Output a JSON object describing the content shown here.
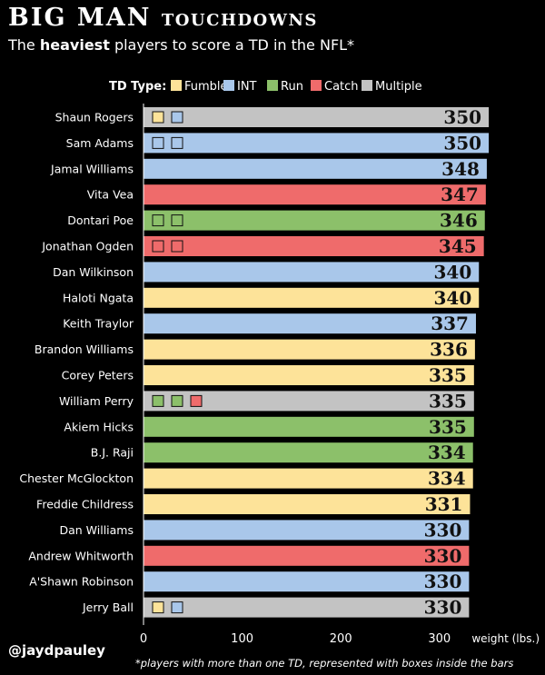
{
  "header": {
    "title_big": "BIG MAN",
    "title_small": "TOUCHDOWNS",
    "subtitle_pre": "The",
    "subtitle_bold": "heaviest",
    "subtitle_post": "players to score a TD in the NFL*"
  },
  "footer": {
    "handle": "@jaydpauley",
    "footnote": "*players with more than one TD, represented with boxes inside the bars"
  },
  "chart_data": {
    "type": "bar",
    "orientation": "horizontal",
    "title": "BIG MAN TOUCHDOWNS",
    "subtitle": "The heaviest players to score a TD in the NFL*",
    "xlabel": "weight (lbs.)",
    "xlim": [
      0,
      350
    ],
    "xticks": [
      0,
      100,
      200,
      300
    ],
    "legend": {
      "title": "TD Type:",
      "position": "top",
      "items": [
        {
          "name": "Fumble",
          "color": "#fde399"
        },
        {
          "name": "INT",
          "color": "#a9c7ea"
        },
        {
          "name": "Run",
          "color": "#8cc06a"
        },
        {
          "name": "Catch",
          "color": "#ef6b6b"
        },
        {
          "name": "Multiple",
          "color": "#c3c3c3"
        }
      ]
    },
    "bars": [
      {
        "player": "Shaun Rogers",
        "weight": 350,
        "td_type": "Multiple",
        "boxes": [
          "Fumble",
          "INT"
        ]
      },
      {
        "player": "Sam Adams",
        "weight": 350,
        "td_type": "INT",
        "boxes": [
          "INT",
          "INT"
        ]
      },
      {
        "player": "Jamal Williams",
        "weight": 348,
        "td_type": "INT",
        "boxes": []
      },
      {
        "player": "Vita Vea",
        "weight": 347,
        "td_type": "Catch",
        "boxes": []
      },
      {
        "player": "Dontari Poe",
        "weight": 346,
        "td_type": "Run",
        "boxes": [
          "Run",
          "Run"
        ]
      },
      {
        "player": "Jonathan Ogden",
        "weight": 345,
        "td_type": "Catch",
        "boxes": [
          "Catch",
          "Catch"
        ]
      },
      {
        "player": "Dan Wilkinson",
        "weight": 340,
        "td_type": "INT",
        "boxes": []
      },
      {
        "player": "Haloti Ngata",
        "weight": 340,
        "td_type": "Fumble",
        "boxes": []
      },
      {
        "player": "Keith Traylor",
        "weight": 337,
        "td_type": "INT",
        "boxes": []
      },
      {
        "player": "Brandon Williams",
        "weight": 336,
        "td_type": "Fumble",
        "boxes": []
      },
      {
        "player": "Corey Peters",
        "weight": 335,
        "td_type": "Fumble",
        "boxes": []
      },
      {
        "player": "William Perry",
        "weight": 335,
        "td_type": "Multiple",
        "boxes": [
          "Run",
          "Run",
          "Catch"
        ]
      },
      {
        "player": "Akiem Hicks",
        "weight": 335,
        "td_type": "Run",
        "boxes": []
      },
      {
        "player": "B.J. Raji",
        "weight": 334,
        "td_type": "Run",
        "boxes": []
      },
      {
        "player": "Chester McGlockton",
        "weight": 334,
        "td_type": "Fumble",
        "boxes": []
      },
      {
        "player": "Freddie Childress",
        "weight": 331,
        "td_type": "Fumble",
        "boxes": []
      },
      {
        "player": "Dan Williams",
        "weight": 330,
        "td_type": "INT",
        "boxes": []
      },
      {
        "player": "Andrew Whitworth",
        "weight": 330,
        "td_type": "Catch",
        "boxes": []
      },
      {
        "player": "A'Shawn Robinson",
        "weight": 330,
        "td_type": "INT",
        "boxes": []
      },
      {
        "player": "Jerry Ball",
        "weight": 330,
        "td_type": "Multiple",
        "boxes": [
          "Fumble",
          "INT"
        ]
      }
    ]
  }
}
